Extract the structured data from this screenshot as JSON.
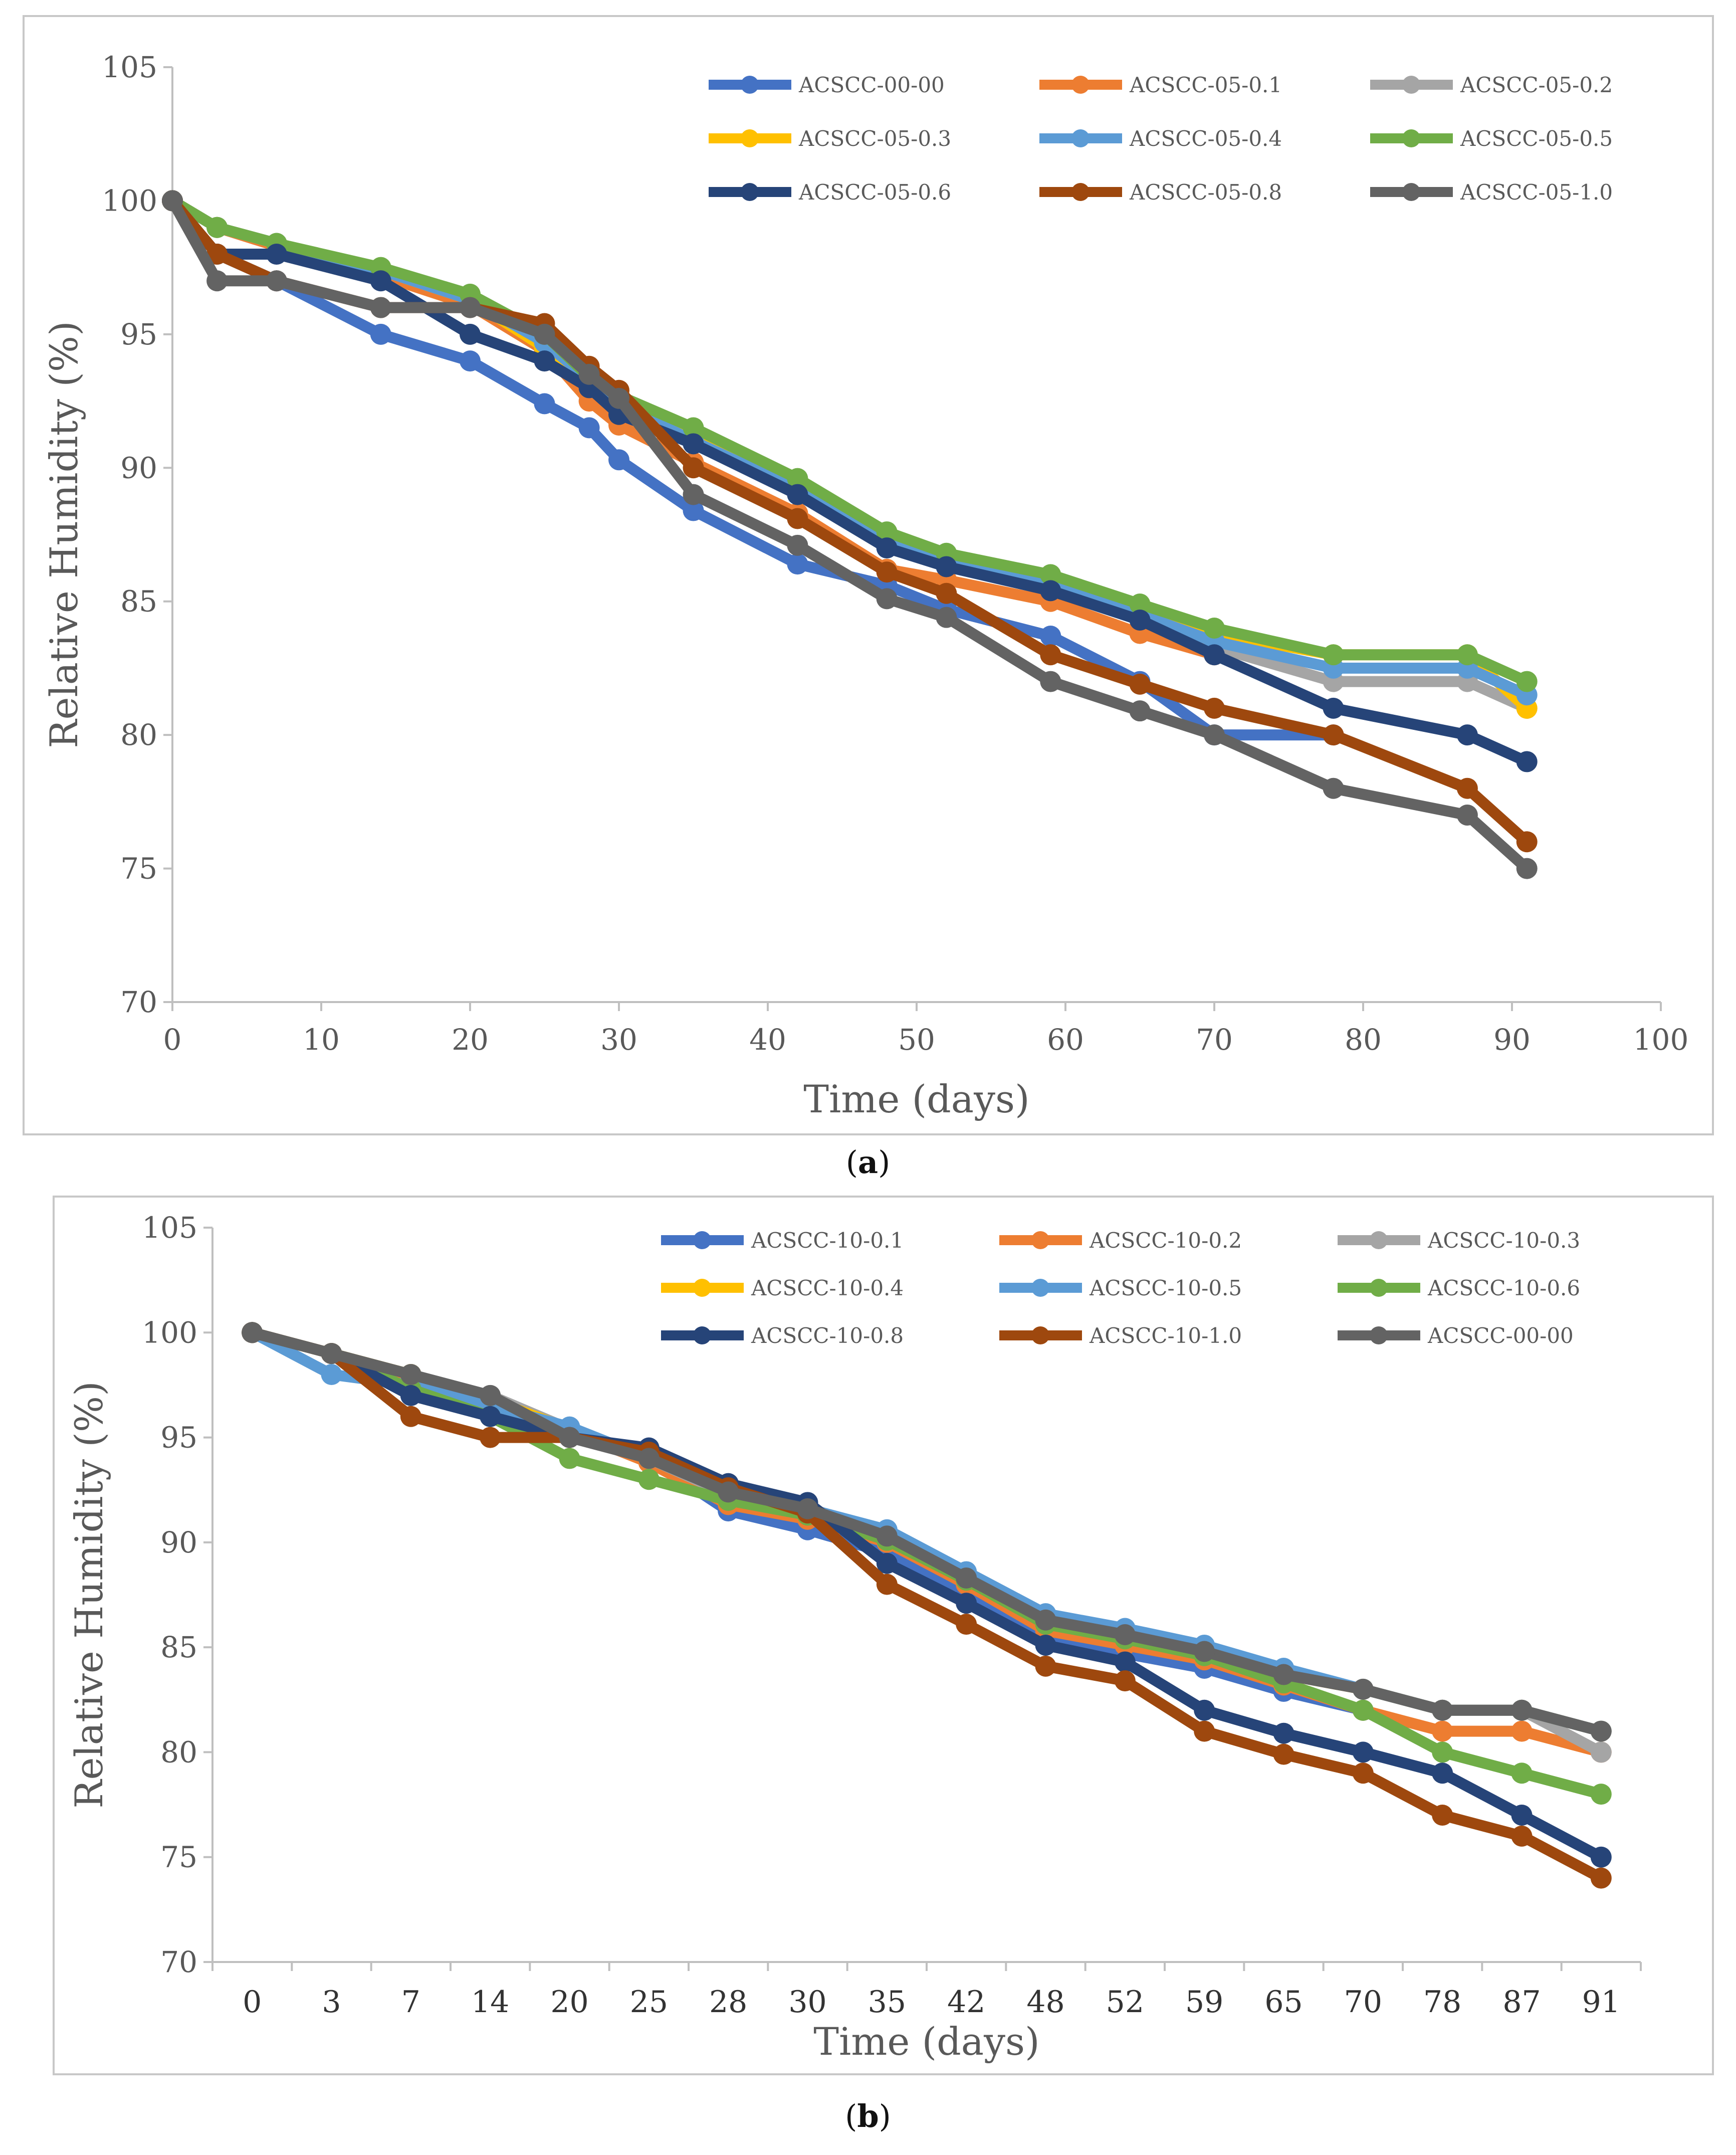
{
  "charts": {
    "a": {
      "caption": "a",
      "chart_data": {
        "type": "line",
        "xlabel": "Time (days)",
        "ylabel": "Relative Humidity (%)",
        "xlim": [
          0,
          100
        ],
        "ylim": [
          70,
          105
        ],
        "xticks": [
          0,
          10,
          20,
          30,
          40,
          50,
          60,
          70,
          80,
          90,
          100
        ],
        "yticks": [
          70,
          75,
          80,
          85,
          90,
          95,
          100,
          105
        ],
        "legend_position": "top-right",
        "series": [
          {
            "name": "ACSCC-00-00",
            "color": "#4472c4",
            "points": [
              [
                0,
                100
              ],
              [
                3,
                98
              ],
              [
                7,
                97
              ],
              [
                14,
                95
              ],
              [
                20,
                94
              ],
              [
                25,
                92.4
              ],
              [
                28,
                91.5
              ],
              [
                30,
                90.3
              ],
              [
                35,
                88.4
              ],
              [
                42,
                86.4
              ],
              [
                48,
                85.6
              ],
              [
                52,
                84.7
              ],
              [
                59,
                83.7
              ],
              [
                65,
                82
              ],
              [
                70,
                80
              ],
              [
                78,
                80
              ]
            ]
          },
          {
            "name": "ACSCC-05-0.1",
            "color": "#ed7d31",
            "points": [
              [
                0,
                100
              ],
              [
                3,
                99
              ],
              [
                7,
                98.3
              ],
              [
                14,
                97.2
              ],
              [
                20,
                96.1
              ],
              [
                25,
                94.4
              ],
              [
                28,
                92.5
              ],
              [
                30,
                91.6
              ],
              [
                35,
                90.2
              ],
              [
                42,
                88.3
              ],
              [
                48,
                86.2
              ],
              [
                52,
                85.8
              ],
              [
                59,
                85
              ],
              [
                65,
                83.8
              ],
              [
                70,
                83
              ]
            ]
          },
          {
            "name": "ACSCC-05-0.2",
            "color": "#a5a5a5",
            "points": [
              [
                0,
                100
              ],
              [
                3,
                99
              ],
              [
                7,
                98.4
              ],
              [
                14,
                97.4
              ],
              [
                20,
                96.3
              ],
              [
                25,
                94.8
              ],
              [
                28,
                93.3
              ],
              [
                30,
                92.5
              ],
              [
                35,
                91.2
              ],
              [
                42,
                89.3
              ],
              [
                48,
                87.3
              ],
              [
                52,
                86.6
              ],
              [
                59,
                85.7
              ],
              [
                65,
                84.6
              ],
              [
                70,
                83.3
              ],
              [
                78,
                82
              ],
              [
                87,
                82
              ],
              [
                91,
                81
              ]
            ]
          },
          {
            "name": "ACSCC-05-0.3",
            "color": "#ffc000",
            "points": [
              [
                0,
                100
              ],
              [
                3,
                99
              ],
              [
                7,
                98.4
              ],
              [
                14,
                97.4
              ],
              [
                20,
                96.3
              ],
              [
                25,
                94.5
              ],
              [
                28,
                93.3
              ],
              [
                30,
                92.6
              ],
              [
                35,
                91.3
              ],
              [
                42,
                89.4
              ],
              [
                48,
                87.4
              ],
              [
                52,
                86.7
              ],
              [
                59,
                85.8
              ],
              [
                65,
                84.7
              ],
              [
                70,
                83.8
              ],
              [
                78,
                83
              ],
              [
                87,
                83
              ],
              [
                91,
                81
              ]
            ]
          },
          {
            "name": "ACSCC-05-0.4",
            "color": "#5b9bd5",
            "points": [
              [
                0,
                100
              ],
              [
                3,
                99
              ],
              [
                7,
                98.4
              ],
              [
                14,
                97.4
              ],
              [
                20,
                96.3
              ],
              [
                25,
                94.7
              ],
              [
                28,
                93.3
              ],
              [
                30,
                92.4
              ],
              [
                35,
                91
              ],
              [
                42,
                89.2
              ],
              [
                48,
                87.2
              ],
              [
                52,
                86.5
              ],
              [
                59,
                85.6
              ],
              [
                65,
                84.5
              ],
              [
                70,
                83.5
              ],
              [
                78,
                82.5
              ],
              [
                87,
                82.5
              ],
              [
                91,
                81.5
              ]
            ]
          },
          {
            "name": "ACSCC-05-0.5",
            "color": "#70ad47",
            "points": [
              [
                0,
                100
              ],
              [
                3,
                99
              ],
              [
                7,
                98.4
              ],
              [
                14,
                97.5
              ],
              [
                20,
                96.5
              ],
              [
                25,
                95
              ],
              [
                28,
                93.4
              ],
              [
                30,
                92.7
              ],
              [
                35,
                91.5
              ],
              [
                42,
                89.6
              ],
              [
                48,
                87.6
              ],
              [
                52,
                86.8
              ],
              [
                59,
                86
              ],
              [
                65,
                84.9
              ],
              [
                70,
                84
              ],
              [
                78,
                83
              ],
              [
                87,
                83
              ],
              [
                91,
                82
              ]
            ]
          },
          {
            "name": "ACSCC-05-0.6",
            "color": "#264478",
            "points": [
              [
                0,
                100
              ],
              [
                3,
                98
              ],
              [
                7,
                98
              ],
              [
                14,
                97
              ],
              [
                20,
                95
              ],
              [
                25,
                94
              ],
              [
                28,
                93
              ],
              [
                30,
                92
              ],
              [
                35,
                90.9
              ],
              [
                42,
                89
              ],
              [
                48,
                87
              ],
              [
                52,
                86.3
              ],
              [
                59,
                85.4
              ],
              [
                65,
                84.3
              ],
              [
                70,
                83
              ],
              [
                78,
                81
              ],
              [
                87,
                80
              ],
              [
                91,
                79
              ]
            ]
          },
          {
            "name": "ACSCC-05-0.8",
            "color": "#9e480e",
            "points": [
              [
                0,
                100
              ],
              [
                3,
                98
              ],
              [
                7,
                97
              ],
              [
                14,
                96
              ],
              [
                20,
                96
              ],
              [
                25,
                95.4
              ],
              [
                28,
                93.8
              ],
              [
                30,
                92.9
              ],
              [
                35,
                90
              ],
              [
                42,
                88.1
              ],
              [
                48,
                86.1
              ],
              [
                52,
                85.3
              ],
              [
                59,
                83
              ],
              [
                65,
                81.9
              ],
              [
                70,
                81
              ],
              [
                78,
                80
              ],
              [
                87,
                78
              ],
              [
                91,
                76
              ]
            ]
          },
          {
            "name": "ACSCC-05-1.0",
            "color": "#636363",
            "points": [
              [
                0,
                100
              ],
              [
                3,
                97
              ],
              [
                7,
                97
              ],
              [
                14,
                96
              ],
              [
                20,
                96
              ],
              [
                25,
                95
              ],
              [
                28,
                93.5
              ],
              [
                30,
                92.6
              ],
              [
                35,
                89
              ],
              [
                42,
                87.1
              ],
              [
                48,
                85.1
              ],
              [
                52,
                84.4
              ],
              [
                59,
                82
              ],
              [
                65,
                80.9
              ],
              [
                70,
                80
              ],
              [
                78,
                78
              ],
              [
                87,
                77
              ],
              [
                91,
                75
              ]
            ]
          }
        ]
      }
    },
    "b": {
      "caption": "b",
      "chart_data": {
        "type": "line",
        "xlabel": "Time (days)",
        "ylabel": "Relative Humidity (%)",
        "categories": [
          "0",
          "3",
          "7",
          "14",
          "20",
          "25",
          "28",
          "30",
          "35",
          "42",
          "48",
          "52",
          "59",
          "65",
          "70",
          "78",
          "87",
          "91"
        ],
        "ylim": [
          70,
          105
        ],
        "yticks": [
          70,
          75,
          80,
          85,
          90,
          95,
          100,
          105
        ],
        "legend_position": "top-right",
        "series": [
          {
            "name": "ACSCC-10-0.1",
            "color": "#4472c4",
            "values": [
              100,
              99,
              97.5,
              96.5,
              95.2,
              94,
              91.5,
              90.6,
              89.5,
              87.7,
              85.4,
              84.7,
              84,
              82.9,
              82,
              null,
              null,
              null
            ]
          },
          {
            "name": "ACSCC-10-0.2",
            "color": "#ed7d31",
            "values": [
              100,
              99,
              97.8,
              96.8,
              95.3,
              93.8,
              91.8,
              91.1,
              90,
              88,
              85.8,
              85.1,
              84.4,
              83.2,
              82,
              81,
              81,
              80
            ]
          },
          {
            "name": "ACSCC-10-0.3",
            "color": "#a5a5a5",
            "values": [
              100,
              99,
              98,
              97,
              95.4,
              94,
              92.3,
              91.6,
              90.4,
              88.4,
              86.4,
              85.7,
              84.9,
              83.8,
              83,
              82,
              82,
              80
            ]
          },
          {
            "name": "ACSCC-10-0.4",
            "color": "#ffc000",
            "values": [
              100,
              99,
              98,
              96.8,
              95.4,
              94,
              92.4,
              91.6,
              90.4,
              88.4,
              86.4,
              85.6,
              84.9,
              83.7,
              83,
              82,
              82,
              81
            ]
          },
          {
            "name": "ACSCC-10-0.5",
            "color": "#5b9bd5",
            "values": [
              100,
              98,
              97.5,
              96.5,
              95.5,
              94,
              92.4,
              91.6,
              90.6,
              88.6,
              86.6,
              85.9,
              85.1,
              84,
              83,
              82,
              82,
              81
            ]
          },
          {
            "name": "ACSCC-10-0.6",
            "color": "#70ad47",
            "values": [
              100,
              99,
              97.3,
              96,
              94,
              93,
              92,
              91.3,
              90.1,
              88.2,
              86.1,
              85.4,
              84.6,
              83.3,
              82,
              80,
              79,
              78
            ]
          },
          {
            "name": "ACSCC-10-0.8",
            "color": "#264478",
            "values": [
              100,
              99,
              97,
              96,
              95,
              94.5,
              92.8,
              91.9,
              89,
              87.1,
              85.1,
              84.3,
              82,
              80.9,
              80,
              79,
              77,
              75
            ]
          },
          {
            "name": "ACSCC-10-1.0",
            "color": "#9e480e",
            "values": [
              100,
              99,
              96,
              95,
              95,
              94.3,
              92.6,
              91.4,
              88,
              86.1,
              84.1,
              83.4,
              81,
              79.9,
              79,
              77,
              76,
              74
            ]
          },
          {
            "name": "ACSCC-00-00",
            "color": "#636363",
            "values": [
              100,
              99,
              98,
              97,
              95,
              94,
              92.4,
              91.6,
              90.3,
              88.3,
              86.3,
              85.6,
              84.8,
              83.7,
              83,
              82,
              82,
              81
            ]
          }
        ]
      }
    }
  }
}
